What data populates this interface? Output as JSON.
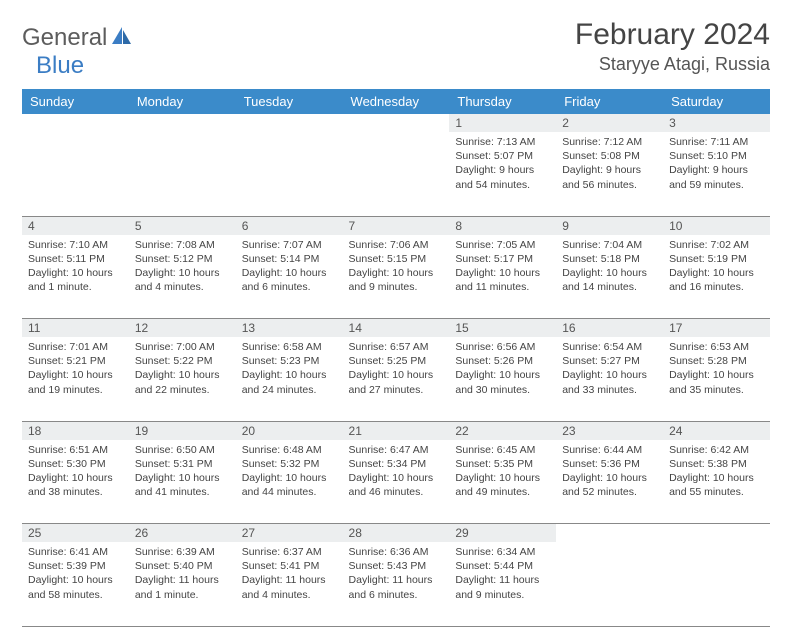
{
  "brand": {
    "part1": "General",
    "part2": "Blue"
  },
  "title": "February 2024",
  "location": "Staryye Atagi, Russia",
  "day_headers": [
    "Sunday",
    "Monday",
    "Tuesday",
    "Wednesday",
    "Thursday",
    "Friday",
    "Saturday"
  ],
  "colors": {
    "header_bg": "#3b8bca",
    "header_text": "#ffffff",
    "daynum_bg": "#eceeef",
    "row_border": "#888888",
    "logo_gray": "#5c5c5c",
    "logo_blue": "#3b7dc4"
  },
  "weeks": [
    [
      null,
      null,
      null,
      null,
      {
        "n": "1",
        "sr": "Sunrise: 7:13 AM",
        "ss": "Sunset: 5:07 PM",
        "dl": "Daylight: 9 hours and 54 minutes."
      },
      {
        "n": "2",
        "sr": "Sunrise: 7:12 AM",
        "ss": "Sunset: 5:08 PM",
        "dl": "Daylight: 9 hours and 56 minutes."
      },
      {
        "n": "3",
        "sr": "Sunrise: 7:11 AM",
        "ss": "Sunset: 5:10 PM",
        "dl": "Daylight: 9 hours and 59 minutes."
      }
    ],
    [
      {
        "n": "4",
        "sr": "Sunrise: 7:10 AM",
        "ss": "Sunset: 5:11 PM",
        "dl": "Daylight: 10 hours and 1 minute."
      },
      {
        "n": "5",
        "sr": "Sunrise: 7:08 AM",
        "ss": "Sunset: 5:12 PM",
        "dl": "Daylight: 10 hours and 4 minutes."
      },
      {
        "n": "6",
        "sr": "Sunrise: 7:07 AM",
        "ss": "Sunset: 5:14 PM",
        "dl": "Daylight: 10 hours and 6 minutes."
      },
      {
        "n": "7",
        "sr": "Sunrise: 7:06 AM",
        "ss": "Sunset: 5:15 PM",
        "dl": "Daylight: 10 hours and 9 minutes."
      },
      {
        "n": "8",
        "sr": "Sunrise: 7:05 AM",
        "ss": "Sunset: 5:17 PM",
        "dl": "Daylight: 10 hours and 11 minutes."
      },
      {
        "n": "9",
        "sr": "Sunrise: 7:04 AM",
        "ss": "Sunset: 5:18 PM",
        "dl": "Daylight: 10 hours and 14 minutes."
      },
      {
        "n": "10",
        "sr": "Sunrise: 7:02 AM",
        "ss": "Sunset: 5:19 PM",
        "dl": "Daylight: 10 hours and 16 minutes."
      }
    ],
    [
      {
        "n": "11",
        "sr": "Sunrise: 7:01 AM",
        "ss": "Sunset: 5:21 PM",
        "dl": "Daylight: 10 hours and 19 minutes."
      },
      {
        "n": "12",
        "sr": "Sunrise: 7:00 AM",
        "ss": "Sunset: 5:22 PM",
        "dl": "Daylight: 10 hours and 22 minutes."
      },
      {
        "n": "13",
        "sr": "Sunrise: 6:58 AM",
        "ss": "Sunset: 5:23 PM",
        "dl": "Daylight: 10 hours and 24 minutes."
      },
      {
        "n": "14",
        "sr": "Sunrise: 6:57 AM",
        "ss": "Sunset: 5:25 PM",
        "dl": "Daylight: 10 hours and 27 minutes."
      },
      {
        "n": "15",
        "sr": "Sunrise: 6:56 AM",
        "ss": "Sunset: 5:26 PM",
        "dl": "Daylight: 10 hours and 30 minutes."
      },
      {
        "n": "16",
        "sr": "Sunrise: 6:54 AM",
        "ss": "Sunset: 5:27 PM",
        "dl": "Daylight: 10 hours and 33 minutes."
      },
      {
        "n": "17",
        "sr": "Sunrise: 6:53 AM",
        "ss": "Sunset: 5:28 PM",
        "dl": "Daylight: 10 hours and 35 minutes."
      }
    ],
    [
      {
        "n": "18",
        "sr": "Sunrise: 6:51 AM",
        "ss": "Sunset: 5:30 PM",
        "dl": "Daylight: 10 hours and 38 minutes."
      },
      {
        "n": "19",
        "sr": "Sunrise: 6:50 AM",
        "ss": "Sunset: 5:31 PM",
        "dl": "Daylight: 10 hours and 41 minutes."
      },
      {
        "n": "20",
        "sr": "Sunrise: 6:48 AM",
        "ss": "Sunset: 5:32 PM",
        "dl": "Daylight: 10 hours and 44 minutes."
      },
      {
        "n": "21",
        "sr": "Sunrise: 6:47 AM",
        "ss": "Sunset: 5:34 PM",
        "dl": "Daylight: 10 hours and 46 minutes."
      },
      {
        "n": "22",
        "sr": "Sunrise: 6:45 AM",
        "ss": "Sunset: 5:35 PM",
        "dl": "Daylight: 10 hours and 49 minutes."
      },
      {
        "n": "23",
        "sr": "Sunrise: 6:44 AM",
        "ss": "Sunset: 5:36 PM",
        "dl": "Daylight: 10 hours and 52 minutes."
      },
      {
        "n": "24",
        "sr": "Sunrise: 6:42 AM",
        "ss": "Sunset: 5:38 PM",
        "dl": "Daylight: 10 hours and 55 minutes."
      }
    ],
    [
      {
        "n": "25",
        "sr": "Sunrise: 6:41 AM",
        "ss": "Sunset: 5:39 PM",
        "dl": "Daylight: 10 hours and 58 minutes."
      },
      {
        "n": "26",
        "sr": "Sunrise: 6:39 AM",
        "ss": "Sunset: 5:40 PM",
        "dl": "Daylight: 11 hours and 1 minute."
      },
      {
        "n": "27",
        "sr": "Sunrise: 6:37 AM",
        "ss": "Sunset: 5:41 PM",
        "dl": "Daylight: 11 hours and 4 minutes."
      },
      {
        "n": "28",
        "sr": "Sunrise: 6:36 AM",
        "ss": "Sunset: 5:43 PM",
        "dl": "Daylight: 11 hours and 6 minutes."
      },
      {
        "n": "29",
        "sr": "Sunrise: 6:34 AM",
        "ss": "Sunset: 5:44 PM",
        "dl": "Daylight: 11 hours and 9 minutes."
      },
      null,
      null
    ]
  ]
}
